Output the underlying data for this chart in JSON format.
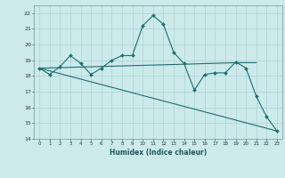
{
  "title": "",
  "xlabel": "Humidex (Indice chaleur)",
  "bg_color": "#cceaea",
  "line_color": "#1a6e6e",
  "xlim": [
    -0.5,
    23.5
  ],
  "ylim": [
    14,
    22.5
  ],
  "yticks": [
    14,
    15,
    16,
    17,
    18,
    19,
    20,
    21,
    22
  ],
  "xticks": [
    0,
    1,
    2,
    3,
    4,
    5,
    6,
    7,
    8,
    9,
    10,
    11,
    12,
    13,
    14,
    15,
    16,
    17,
    18,
    19,
    20,
    21,
    22,
    23
  ],
  "line1_x": [
    0,
    1,
    2,
    3,
    4,
    5,
    6,
    7,
    8,
    9,
    10,
    11,
    12,
    13,
    14,
    15,
    16,
    17,
    18,
    19,
    20,
    21,
    22,
    23
  ],
  "line1_y": [
    18.5,
    18.1,
    18.6,
    19.3,
    18.8,
    18.1,
    18.5,
    19.0,
    19.3,
    19.3,
    21.2,
    21.85,
    21.3,
    19.5,
    18.8,
    17.1,
    18.1,
    18.2,
    18.2,
    18.9,
    18.5,
    16.7,
    15.4,
    14.5
  ],
  "line2_x": [
    0,
    23
  ],
  "line2_y": [
    18.5,
    14.5
  ],
  "line3_x": [
    0,
    14,
    19,
    21
  ],
  "line3_y": [
    18.5,
    18.75,
    18.85,
    18.85
  ]
}
